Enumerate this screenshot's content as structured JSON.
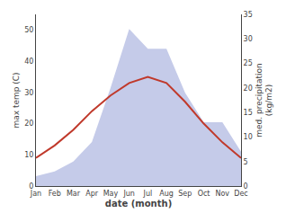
{
  "chart_data": {
    "type": "line",
    "categories": [
      "Jan",
      "Feb",
      "Mar",
      "Apr",
      "May",
      "Jun",
      "Jul",
      "Aug",
      "Sep",
      "Oct",
      "Nov",
      "Dec"
    ],
    "series": [
      {
        "type": "area",
        "axis": "y2",
        "color": "#c5cbe9",
        "values": [
          2,
          3,
          5,
          9,
          20,
          32,
          28,
          28,
          19,
          13,
          13,
          7
        ]
      },
      {
        "type": "line",
        "color": "#c0392b",
        "values": [
          9,
          13,
          18,
          24,
          29,
          33,
          35,
          33,
          27,
          20,
          14,
          9
        ]
      }
    ],
    "xlabel": "date (month)",
    "ylabel": "max temp (C)",
    "y2label": "med. precipitation\n(kg/m2)",
    "ylim": [
      0,
      55
    ],
    "yticks": [
      0,
      10,
      20,
      30,
      40,
      50
    ],
    "y2lim": [
      0,
      35
    ],
    "y2ticks": [
      0,
      5,
      10,
      15,
      20,
      25,
      30,
      35
    ],
    "grid": false
  }
}
